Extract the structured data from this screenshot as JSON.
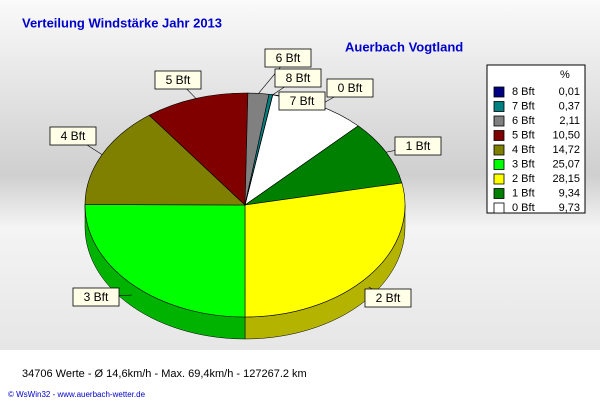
{
  "chart_data": {
    "type": "pie",
    "title": "Verteilung Windstärke  Jahr 2013",
    "subtitle": "Auerbach Vogtland",
    "legend_title": "%",
    "categories": [
      "0 Bft",
      "1 Bft",
      "2 Bft",
      "3 Bft",
      "4 Bft",
      "5 Bft",
      "6 Bft",
      "7 Bft",
      "8 Bft"
    ],
    "values": [
      9.73,
      9.34,
      28.15,
      25.07,
      14.72,
      10.5,
      2.11,
      0.37,
      0.01
    ],
    "value_labels": [
      "9,73",
      "9,34",
      "28,15",
      "25,07",
      "14,72",
      "10,50",
      "2,11",
      "0,37",
      "0,01"
    ],
    "colors": [
      "#ffffff",
      "#008000",
      "#ffff00",
      "#00ff00",
      "#808000",
      "#800000",
      "#808080",
      "#008080",
      "#000080"
    ],
    "legend": "right"
  },
  "footer": {
    "stats": "34706 Werte   -   Ø 14,6km/h  -  Max. 69,4km/h  -   127267.2 km",
    "credit": "© WsWin32  -  www.auerbach-wetter.de"
  }
}
